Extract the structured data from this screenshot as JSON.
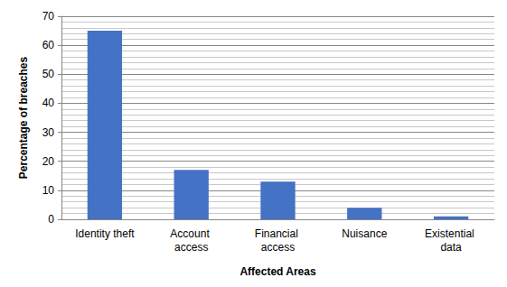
{
  "chart_data": {
    "type": "bar",
    "x_label": "Affected Areas",
    "y_label": "Percentage of breaches",
    "categories": [
      "Identity theft",
      "Account access",
      "Financial access",
      "Nuisance",
      "Existential data"
    ],
    "values": [
      65,
      17,
      13,
      4,
      1
    ],
    "color": "#4472c4",
    "ylim": [
      0,
      70
    ],
    "yticks": [
      0,
      10,
      20,
      30,
      40,
      50,
      60,
      70
    ],
    "grid": true
  }
}
